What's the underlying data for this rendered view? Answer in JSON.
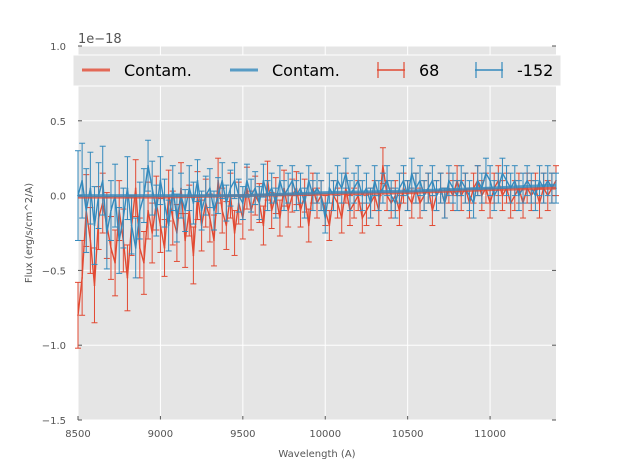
{
  "colors": {
    "red": "#E24A33",
    "blue": "#348ABD",
    "panel": "#E5E5E5",
    "grid": "#FFFFFF",
    "text": "#555555"
  },
  "chart_data": {
    "type": "line",
    "xlabel": "Wavelength (A)",
    "ylabel": "Flux (erg/s/cm^2/A)",
    "offset_label": "1e−18",
    "xlim": [
      8500,
      11400
    ],
    "ylim": [
      -1.5,
      1.0
    ],
    "xticks": [
      8500,
      9000,
      9500,
      10000,
      10500,
      11000
    ],
    "xtick_labels": [
      "8500",
      "9000",
      "9500",
      "10000",
      "10500",
      "11000"
    ],
    "yticks": [
      -1.5,
      -1.0,
      -0.5,
      0.0,
      0.5,
      1.0
    ],
    "ytick_labels": [
      "−1.5",
      "−1.0",
      "−0.5",
      "0.0",
      "0.5",
      "1.0"
    ],
    "grid": true,
    "legend": {
      "placement": "top",
      "entries": [
        {
          "label": "Contam.",
          "kind": "line",
          "color": "#E24A33"
        },
        {
          "label": "Contam.",
          "kind": "line",
          "color": "#348ABD"
        },
        {
          "label": "68",
          "kind": "errorbar",
          "color": "#E24A33"
        },
        {
          "label": "-152",
          "kind": "errorbar",
          "color": "#348ABD"
        }
      ]
    },
    "series": [
      {
        "name": "Contam.",
        "kind": "line",
        "color": "#E24A33",
        "x": [
          8500,
          9000,
          9500,
          10000,
          10500,
          11000,
          11400
        ],
        "y": [
          -0.01,
          -0.01,
          0.0,
          0.01,
          0.02,
          0.04,
          0.05
        ]
      },
      {
        "name": "Contam.",
        "kind": "line",
        "color": "#348ABD",
        "x": [
          8500,
          9000,
          9500,
          10000,
          10500,
          11000,
          11400
        ],
        "y": [
          0.0,
          0.0,
          0.0,
          0.02,
          0.03,
          0.05,
          0.07
        ]
      },
      {
        "name": "68",
        "kind": "errorbar",
        "color": "#E24A33",
        "x": [
          8500,
          8525,
          8550,
          8575,
          8600,
          8625,
          8650,
          8675,
          8700,
          8725,
          8750,
          8775,
          8800,
          8825,
          8850,
          8875,
          8900,
          8925,
          8950,
          8975,
          9000,
          9025,
          9050,
          9075,
          9100,
          9125,
          9150,
          9175,
          9200,
          9225,
          9250,
          9275,
          9300,
          9325,
          9350,
          9375,
          9400,
          9425,
          9450,
          9475,
          9500,
          9525,
          9550,
          9575,
          9600,
          9625,
          9650,
          9675,
          9700,
          9725,
          9750,
          9775,
          9800,
          9825,
          9850,
          9875,
          9900,
          9925,
          9950,
          9975,
          10000,
          10025,
          10050,
          10075,
          10100,
          10125,
          10150,
          10175,
          10200,
          10225,
          10250,
          10275,
          10300,
          10325,
          10350,
          10375,
          10400,
          10425,
          10450,
          10475,
          10500,
          10525,
          10550,
          10575,
          10600,
          10625,
          10650,
          10675,
          10700,
          10725,
          10750,
          10775,
          10800,
          10825,
          10850,
          10875,
          10900,
          10925,
          10950,
          10975,
          11000,
          11025,
          11050,
          11075,
          11100,
          11125,
          11150,
          11175,
          11200,
          11225,
          11250,
          11275,
          11300,
          11325,
          11350,
          11375,
          11400
        ],
        "y": [
          -0.8,
          -0.55,
          -0.1,
          -0.3,
          -0.6,
          -0.15,
          -0.05,
          -0.2,
          -0.35,
          -0.45,
          -0.1,
          -0.3,
          -0.55,
          -0.2,
          0.05,
          -0.35,
          -0.45,
          -0.1,
          -0.25,
          -0.05,
          -0.2,
          -0.35,
          0.0,
          -0.15,
          -0.25,
          0.05,
          -0.3,
          -0.1,
          -0.4,
          0.0,
          -0.2,
          -0.05,
          -0.15,
          -0.3,
          0.1,
          -0.1,
          -0.2,
          0.0,
          -0.25,
          -0.05,
          -0.15,
          0.05,
          -0.1,
          0.0,
          -0.05,
          -0.2,
          0.1,
          -0.1,
          0.0,
          -0.15,
          0.05,
          -0.1,
          0.0,
          0.05,
          -0.1,
          0.0,
          -0.2,
          0.05,
          -0.05,
          0.0,
          -0.1,
          -0.2,
          0.0,
          -0.05,
          -0.15,
          0.05,
          -0.1,
          -0.05,
          0.0,
          -0.15,
          -0.1,
          -0.05,
          0.0,
          -0.1,
          0.2,
          0.0,
          -0.05,
          0.0,
          -0.1,
          0.05,
          0.0,
          -0.05,
          0.05,
          -0.05,
          0.0,
          0.05,
          -0.1,
          0.0,
          0.05,
          -0.05,
          0.05,
          0.0,
          0.1,
          0.0,
          0.05,
          -0.05,
          0.05,
          0.1,
          0.0,
          0.05,
          -0.05,
          0.05,
          0.1,
          0.0,
          0.05,
          -0.05,
          0.0,
          0.05,
          -0.05,
          0.05,
          0.0,
          0.05,
          -0.05,
          0.05,
          0.0,
          0.05,
          0.1
        ],
        "err": [
          0.22,
          0.25,
          0.24,
          0.22,
          0.25,
          0.21,
          0.2,
          0.22,
          0.21,
          0.22,
          0.2,
          0.21,
          0.22,
          0.2,
          0.19,
          0.2,
          0.21,
          0.19,
          0.2,
          0.18,
          0.18,
          0.19,
          0.17,
          0.18,
          0.19,
          0.17,
          0.18,
          0.17,
          0.19,
          0.16,
          0.17,
          0.16,
          0.16,
          0.17,
          0.15,
          0.15,
          0.16,
          0.15,
          0.15,
          0.14,
          0.14,
          0.14,
          0.13,
          0.13,
          0.13,
          0.13,
          0.13,
          0.12,
          0.12,
          0.12,
          0.12,
          0.11,
          0.11,
          0.11,
          0.11,
          0.11,
          0.11,
          0.1,
          0.1,
          0.1,
          0.1,
          0.1,
          0.1,
          0.1,
          0.1,
          0.1,
          0.1,
          0.1,
          0.1,
          0.1,
          0.1,
          0.1,
          0.1,
          0.1,
          0.12,
          0.1,
          0.1,
          0.1,
          0.1,
          0.1,
          0.1,
          0.1,
          0.1,
          0.1,
          0.1,
          0.1,
          0.1,
          0.1,
          0.1,
          0.1,
          0.1,
          0.1,
          0.1,
          0.1,
          0.1,
          0.1,
          0.1,
          0.1,
          0.1,
          0.1,
          0.1,
          0.1,
          0.1,
          0.1,
          0.1,
          0.1,
          0.1,
          0.1,
          0.1,
          0.1,
          0.1,
          0.1,
          0.1,
          0.1,
          0.1,
          0.1,
          0.1
        ]
      },
      {
        "name": "-152",
        "kind": "errorbar",
        "color": "#348ABD",
        "x": [
          8500,
          8525,
          8550,
          8575,
          8600,
          8625,
          8650,
          8675,
          8700,
          8725,
          8750,
          8775,
          8800,
          8825,
          8850,
          8875,
          8900,
          8925,
          8950,
          8975,
          9000,
          9025,
          9050,
          9075,
          9100,
          9125,
          9150,
          9175,
          9200,
          9225,
          9250,
          9275,
          9300,
          9325,
          9350,
          9375,
          9400,
          9425,
          9450,
          9475,
          9500,
          9525,
          9550,
          9575,
          9600,
          9625,
          9650,
          9675,
          9700,
          9725,
          9750,
          9775,
          9800,
          9825,
          9850,
          9875,
          9900,
          9925,
          9950,
          9975,
          10000,
          10025,
          10050,
          10075,
          10100,
          10125,
          10150,
          10175,
          10200,
          10225,
          10250,
          10275,
          10300,
          10325,
          10350,
          10375,
          10400,
          10425,
          10450,
          10475,
          10500,
          10525,
          10550,
          10575,
          10600,
          10625,
          10650,
          10675,
          10700,
          10725,
          10750,
          10775,
          10800,
          10825,
          10850,
          10875,
          10900,
          10925,
          10950,
          10975,
          11000,
          11025,
          11050,
          11075,
          11100,
          11125,
          11150,
          11175,
          11200,
          11225,
          11250,
          11275,
          11300,
          11325,
          11350,
          11375,
          11400
        ],
        "y": [
          0.0,
          0.1,
          -0.1,
          0.05,
          -0.2,
          0.0,
          0.1,
          -0.25,
          -0.1,
          0.0,
          -0.3,
          -0.15,
          0.05,
          -0.2,
          -0.35,
          -0.1,
          0.0,
          0.2,
          0.05,
          -0.1,
          0.1,
          -0.05,
          -0.2,
          0.05,
          -0.15,
          0.0,
          -0.1,
          0.05,
          -0.05,
          0.1,
          -0.1,
          0.0,
          0.05,
          -0.1,
          0.0,
          0.1,
          -0.05,
          0.05,
          0.1,
          0.0,
          -0.05,
          0.1,
          0.0,
          0.05,
          -0.05,
          0.1,
          0.0,
          0.05,
          -0.05,
          0.1,
          0.0,
          0.05,
          0.1,
          0.0,
          0.05,
          -0.05,
          0.1,
          0.0,
          0.05,
          0.0,
          -0.15,
          0.05,
          0.0,
          0.1,
          0.05,
          0.15,
          0.0,
          0.05,
          0.1,
          0.0,
          0.05,
          -0.05,
          0.1,
          0.0,
          0.05,
          0.1,
          0.0,
          -0.05,
          0.05,
          0.1,
          0.0,
          0.15,
          0.05,
          0.1,
          0.0,
          0.05,
          0.1,
          0.0,
          0.05,
          -0.05,
          0.1,
          0.05,
          0.0,
          0.1,
          0.05,
          0.0,
          -0.05,
          0.1,
          0.05,
          0.15,
          0.1,
          0.0,
          0.05,
          0.15,
          0.1,
          0.05,
          0.1,
          0.0,
          0.05,
          0.1,
          0.05,
          0.0,
          0.1,
          0.05,
          0.1,
          0.05,
          0.05
        ],
        "err": [
          0.3,
          0.25,
          0.28,
          0.24,
          0.26,
          0.22,
          0.23,
          0.24,
          0.2,
          0.21,
          0.22,
          0.2,
          0.21,
          0.19,
          0.2,
          0.19,
          0.18,
          0.17,
          0.18,
          0.17,
          0.16,
          0.16,
          0.17,
          0.15,
          0.16,
          0.15,
          0.14,
          0.15,
          0.14,
          0.14,
          0.13,
          0.13,
          0.13,
          0.13,
          0.12,
          0.12,
          0.12,
          0.12,
          0.12,
          0.11,
          0.11,
          0.11,
          0.11,
          0.11,
          0.11,
          0.11,
          0.1,
          0.1,
          0.1,
          0.1,
          0.1,
          0.1,
          0.1,
          0.1,
          0.1,
          0.1,
          0.1,
          0.1,
          0.1,
          0.1,
          0.1,
          0.1,
          0.1,
          0.1,
          0.1,
          0.1,
          0.1,
          0.1,
          0.1,
          0.1,
          0.1,
          0.1,
          0.1,
          0.1,
          0.1,
          0.1,
          0.1,
          0.1,
          0.1,
          0.1,
          0.1,
          0.1,
          0.1,
          0.1,
          0.1,
          0.1,
          0.1,
          0.1,
          0.1,
          0.1,
          0.1,
          0.1,
          0.1,
          0.1,
          0.1,
          0.1,
          0.1,
          0.1,
          0.1,
          0.1,
          0.1,
          0.1,
          0.1,
          0.1,
          0.1,
          0.1,
          0.1,
          0.1,
          0.1,
          0.1,
          0.1,
          0.1,
          0.1,
          0.1,
          0.1,
          0.1,
          0.1
        ]
      }
    ]
  }
}
